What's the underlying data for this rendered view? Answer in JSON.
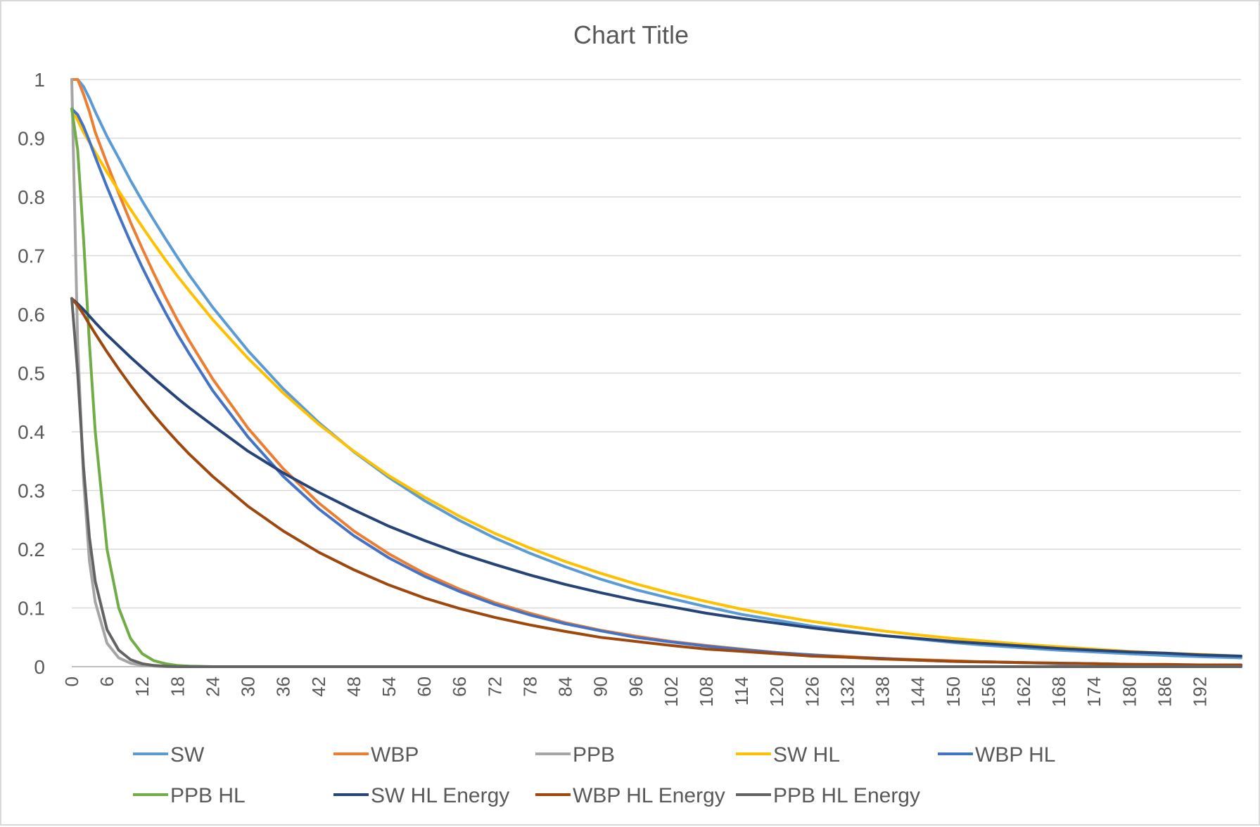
{
  "chart_data": {
    "type": "line",
    "title": "Chart Title",
    "xlabel": "",
    "ylabel": "",
    "xlim": [
      0,
      199
    ],
    "ylim": [
      0,
      1
    ],
    "y_ticks": [
      "0",
      "0.1",
      "0.2",
      "0.3",
      "0.4",
      "0.5",
      "0.6",
      "0.7",
      "0.8",
      "0.9",
      "1"
    ],
    "x_ticks": [
      "0",
      "6",
      "12",
      "18",
      "24",
      "30",
      "36",
      "42",
      "48",
      "54",
      "60",
      "66",
      "72",
      "78",
      "84",
      "90",
      "96",
      "102",
      "108",
      "114",
      "120",
      "126",
      "132",
      "138",
      "144",
      "150",
      "156",
      "162",
      "168",
      "174",
      "180",
      "186",
      "192"
    ],
    "grid": "horizontal",
    "legend_position": "bottom",
    "x": [
      0,
      1,
      2,
      3,
      4,
      6,
      8,
      10,
      12,
      14,
      16,
      18,
      20,
      24,
      30,
      36,
      42,
      48,
      54,
      60,
      66,
      72,
      78,
      84,
      90,
      96,
      102,
      108,
      114,
      120,
      126,
      132,
      138,
      144,
      150,
      156,
      162,
      168,
      174,
      180,
      186,
      192,
      199
    ],
    "series": [
      {
        "name": "SW",
        "color": "#5B9BD5",
        "values": [
          1.0,
          1.0,
          0.988,
          0.968,
          0.945,
          0.903,
          0.866,
          0.828,
          0.793,
          0.76,
          0.728,
          0.697,
          0.667,
          0.612,
          0.538,
          0.473,
          0.416,
          0.366,
          0.322,
          0.283,
          0.249,
          0.219,
          0.193,
          0.17,
          0.149,
          0.131,
          0.116,
          0.102,
          0.089,
          0.079,
          0.069,
          0.061,
          0.053,
          0.047,
          0.041,
          0.036,
          0.032,
          0.028,
          0.025,
          0.022,
          0.019,
          0.017,
          0.015
        ]
      },
      {
        "name": "WBP",
        "color": "#ED7D31",
        "values": [
          1.0,
          1.0,
          0.975,
          0.945,
          0.91,
          0.857,
          0.806,
          0.757,
          0.712,
          0.669,
          0.628,
          0.59,
          0.555,
          0.49,
          0.406,
          0.337,
          0.279,
          0.231,
          0.192,
          0.159,
          0.132,
          0.109,
          0.091,
          0.075,
          0.062,
          0.052,
          0.043,
          0.036,
          0.03,
          0.024,
          0.02,
          0.017,
          0.014,
          0.012,
          0.01,
          0.008,
          0.007,
          0.006,
          0.005,
          0.004,
          0.003,
          0.003,
          0.002
        ]
      },
      {
        "name": "PPB",
        "color": "#A5A5A5",
        "values": [
          1.0,
          0.55,
          0.32,
          0.18,
          0.11,
          0.04,
          0.015,
          0.006,
          0.002,
          0.001,
          0.0,
          0.0,
          0.0,
          0.0,
          0.0,
          0.0,
          0.0,
          0.0,
          0.0,
          0.0,
          0.0,
          0.0,
          0.0,
          0.0,
          0.0,
          0.0,
          0.0,
          0.0,
          0.0,
          0.0,
          0.0,
          0.0,
          0.0,
          0.0,
          0.0,
          0.0,
          0.0,
          0.0,
          0.0,
          0.0,
          0.0,
          0.0,
          0.0
        ]
      },
      {
        "name": "SW HL",
        "color": "#FFC000",
        "values": [
          0.95,
          0.93,
          0.91,
          0.893,
          0.876,
          0.842,
          0.81,
          0.779,
          0.749,
          0.72,
          0.692,
          0.665,
          0.64,
          0.591,
          0.525,
          0.466,
          0.413,
          0.367,
          0.325,
          0.289,
          0.256,
          0.227,
          0.202,
          0.179,
          0.159,
          0.141,
          0.125,
          0.111,
          0.098,
          0.087,
          0.077,
          0.069,
          0.061,
          0.054,
          0.048,
          0.043,
          0.038,
          0.034,
          0.03,
          0.026,
          0.023,
          0.021,
          0.018
        ]
      },
      {
        "name": "WBP HL",
        "color": "#4472C4",
        "values": [
          0.95,
          0.94,
          0.92,
          0.895,
          0.868,
          0.817,
          0.769,
          0.723,
          0.68,
          0.64,
          0.602,
          0.566,
          0.533,
          0.47,
          0.391,
          0.324,
          0.269,
          0.223,
          0.185,
          0.154,
          0.128,
          0.106,
          0.088,
          0.073,
          0.061,
          0.05,
          0.042,
          0.035,
          0.029,
          0.024,
          0.02,
          0.016,
          0.014,
          0.011,
          0.009,
          0.008,
          0.007,
          0.005,
          0.005,
          0.004,
          0.003,
          0.003,
          0.002
        ]
      },
      {
        "name": "PPB HL",
        "color": "#70AD47",
        "values": [
          0.95,
          0.88,
          0.73,
          0.55,
          0.4,
          0.2,
          0.1,
          0.048,
          0.022,
          0.01,
          0.005,
          0.002,
          0.001,
          0.0,
          0.0,
          0.0,
          0.0,
          0.0,
          0.0,
          0.0,
          0.0,
          0.0,
          0.0,
          0.0,
          0.0,
          0.0,
          0.0,
          0.0,
          0.0,
          0.0,
          0.0,
          0.0,
          0.0,
          0.0,
          0.0,
          0.0,
          0.0,
          0.0,
          0.0,
          0.0,
          0.0,
          0.0,
          0.0
        ]
      },
      {
        "name": "SW HL Energy",
        "color": "#264478",
        "values": [
          0.627,
          0.618,
          0.608,
          0.597,
          0.586,
          0.565,
          0.546,
          0.527,
          0.509,
          0.491,
          0.474,
          0.457,
          0.441,
          0.411,
          0.367,
          0.33,
          0.297,
          0.267,
          0.239,
          0.215,
          0.193,
          0.174,
          0.156,
          0.14,
          0.126,
          0.113,
          0.102,
          0.091,
          0.082,
          0.074,
          0.066,
          0.059,
          0.053,
          0.048,
          0.043,
          0.039,
          0.035,
          0.031,
          0.028,
          0.025,
          0.023,
          0.02,
          0.018
        ]
      },
      {
        "name": "WBP HL Energy",
        "color": "#9E480E",
        "values": [
          0.627,
          0.615,
          0.6,
          0.583,
          0.567,
          0.536,
          0.507,
          0.479,
          0.453,
          0.428,
          0.405,
          0.383,
          0.362,
          0.324,
          0.273,
          0.231,
          0.195,
          0.165,
          0.139,
          0.117,
          0.099,
          0.084,
          0.071,
          0.06,
          0.05,
          0.043,
          0.036,
          0.03,
          0.026,
          0.022,
          0.018,
          0.016,
          0.013,
          0.011,
          0.009,
          0.008,
          0.007,
          0.006,
          0.005,
          0.004,
          0.004,
          0.003,
          0.003
        ]
      },
      {
        "name": "PPB HL Energy",
        "color": "#636363",
        "values": [
          0.627,
          0.5,
          0.34,
          0.22,
          0.145,
          0.063,
          0.028,
          0.012,
          0.005,
          0.002,
          0.001,
          0.0,
          0.0,
          0.0,
          0.0,
          0.0,
          0.0,
          0.0,
          0.0,
          0.0,
          0.0,
          0.0,
          0.0,
          0.0,
          0.0,
          0.0,
          0.0,
          0.0,
          0.0,
          0.0,
          0.0,
          0.0,
          0.0,
          0.0,
          0.0,
          0.0,
          0.0,
          0.0,
          0.0,
          0.0,
          0.0,
          0.0,
          0.0
        ]
      }
    ]
  }
}
